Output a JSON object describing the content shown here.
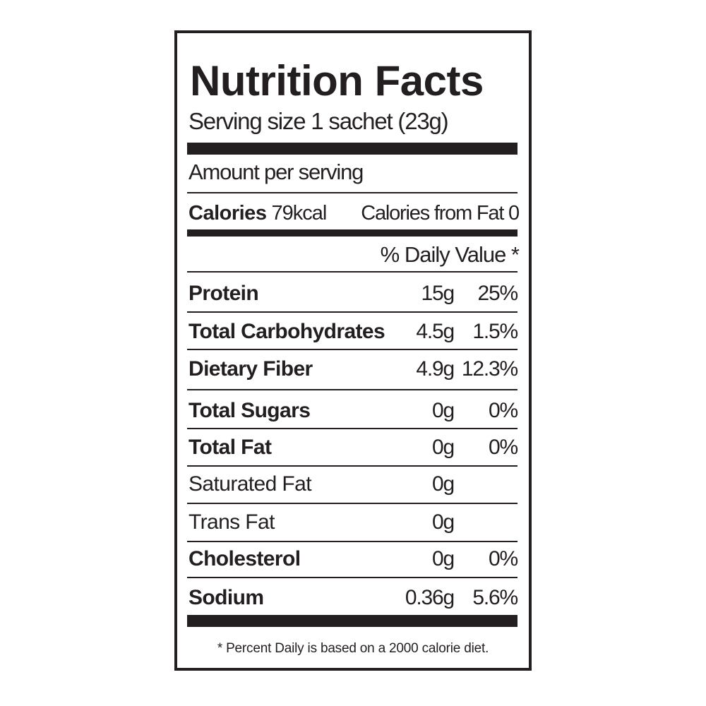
{
  "title": "Nutrition Facts",
  "serving_size": "Serving size 1 sachet (23g)",
  "amount_per_serving": "Amount per serving",
  "calories": {
    "label": "Calories",
    "value": "79kcal",
    "from_fat": "Calories from Fat 0"
  },
  "daily_value_header": "% Daily Value *",
  "nutrients": [
    {
      "name": "Protein",
      "amount": "15g",
      "dv": "25%",
      "bold": true
    },
    {
      "name": "Total Carbohydrates",
      "amount": "4.5g",
      "dv": "1.5%",
      "bold": true
    },
    {
      "name": "Dietary Fiber",
      "amount": "4.9g",
      "dv": "12.3%",
      "bold": true
    },
    {
      "name": "Total Sugars",
      "amount": "0g",
      "dv": "0%",
      "bold": true
    },
    {
      "name": "Total Fat",
      "amount": "0g",
      "dv": "0%",
      "bold": true
    },
    {
      "name": "Saturated Fat",
      "amount": "0g",
      "dv": "",
      "bold": false
    },
    {
      "name": "Trans Fat",
      "amount": "0g",
      "dv": "",
      "bold": false
    },
    {
      "name": "Cholesterol",
      "amount": "0g",
      "dv": "0%",
      "bold": true
    },
    {
      "name": "Sodium",
      "amount": "0.36g",
      "dv": "5.6%",
      "bold": true
    }
  ],
  "footnote": "* Percent Daily is based on a 2000 calorie diet."
}
